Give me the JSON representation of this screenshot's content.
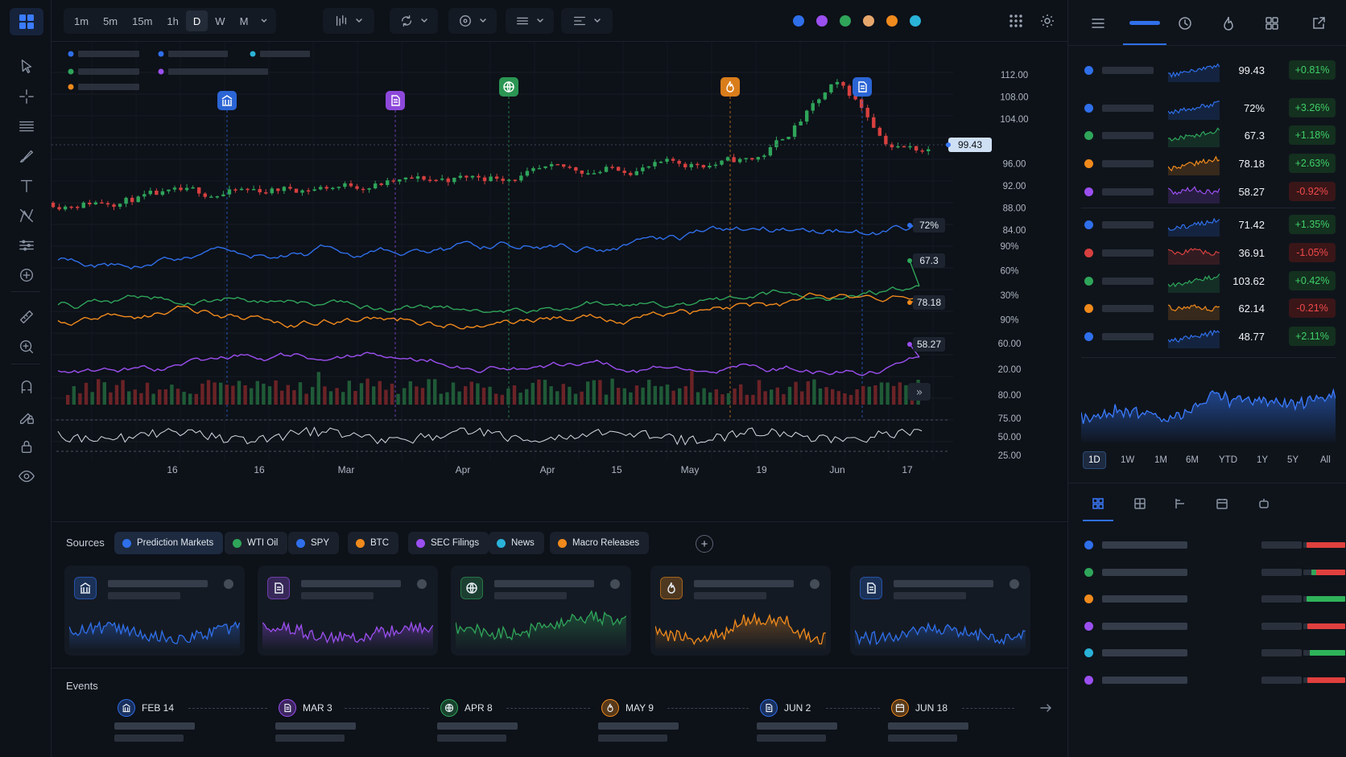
{
  "toolbar": {
    "timeframes": [
      "1m",
      "5m",
      "15m",
      "1h",
      "D",
      "W",
      "M"
    ],
    "active_timeframe": "D",
    "series_colors": [
      "#2f6fea",
      "#9b4ff0",
      "#2fa55a",
      "#e7a76c",
      "#f08a1c",
      "#2ab2d8"
    ]
  },
  "chart": {
    "price_label": "99.43",
    "price_axis": [
      "112.00",
      "108.00",
      "104.00",
      "100.00",
      "96.00",
      "92.00",
      "88.00",
      "84.00"
    ],
    "pct_axis": [
      "90%",
      "60%",
      "30%",
      "90%"
    ],
    "lower_axis": [
      "60.00",
      "20.00",
      "80.00"
    ],
    "osc_axis": [
      "75.00",
      "50.00",
      "25.00"
    ],
    "x_labels": [
      "16",
      "16",
      "Mar",
      "Apr",
      "Apr",
      "15",
      "May",
      "19",
      "Jun",
      "17"
    ],
    "line_labels": [
      {
        "text": "72%",
        "color": "#2f6fea"
      },
      {
        "text": "67.3",
        "color": "#2fa55a"
      },
      {
        "text": "78.18",
        "color": "#f08a1c"
      },
      {
        "text": "58.27",
        "color": "#9b4ff0"
      }
    ],
    "markers": [
      {
        "icon": "bank-icon",
        "color": "#2f6fea"
      },
      {
        "icon": "document-icon",
        "color": "#9b4ff0"
      },
      {
        "icon": "globe-icon",
        "color": "#2fa55a"
      },
      {
        "icon": "fire-icon",
        "color": "#f08a1c"
      },
      {
        "icon": "document-icon",
        "color": "#2f6fea"
      }
    ],
    "legend_colors": [
      "#2f6fea",
      "#2f6fea",
      "#2ab2d8",
      "#2fa55a",
      "#9b4ff0",
      "#f08a1c"
    ],
    "scroll_label": "»"
  },
  "sources": {
    "label": "Sources",
    "chips": [
      {
        "label": "Prediction Markets",
        "color": "#2f6fea"
      },
      {
        "label": "WTI Oil",
        "color": "#2fa55a"
      },
      {
        "label": "SPY",
        "color": "#2f6fea"
      },
      {
        "label": "BTC",
        "color": "#f08a1c"
      },
      {
        "label": "SEC Filings",
        "color": "#9b4ff0"
      },
      {
        "label": "News",
        "color": "#2ab2d8"
      },
      {
        "label": "Macro Releases",
        "color": "#f08a1c"
      }
    ],
    "add_label": "+",
    "cards": [
      {
        "icon": "bank-icon",
        "color": "#2f6fea"
      },
      {
        "icon": "document-icon",
        "color": "#9b4ff0"
      },
      {
        "icon": "globe-icon",
        "color": "#2fa55a"
      },
      {
        "icon": "fire-icon",
        "color": "#f08a1c"
      },
      {
        "icon": "document-icon",
        "color": "#2f6fea"
      }
    ]
  },
  "events": {
    "label": "Events",
    "items": [
      {
        "date": "FEB 14",
        "icon": "bank-icon",
        "color": "#2f6fea"
      },
      {
        "date": "MAR 3",
        "icon": "document-icon",
        "color": "#9b4ff0"
      },
      {
        "date": "APR 8",
        "icon": "globe-icon",
        "color": "#2fa55a"
      },
      {
        "date": "MAY 9",
        "icon": "fire-icon",
        "color": "#f08a1c"
      },
      {
        "date": "JUN 2",
        "icon": "document-icon",
        "color": "#2f6fea"
      },
      {
        "date": "JUN 18",
        "icon": "calendar-icon",
        "color": "#f08a1c"
      }
    ]
  },
  "watchlist": {
    "rows": [
      {
        "value": "99.43",
        "change": "+0.81%",
        "dir": "up",
        "color": "#2f6fea"
      },
      {
        "value": "72%",
        "change": "+3.26%",
        "dir": "up",
        "color": "#2f6fea"
      },
      {
        "value": "67.3",
        "change": "+1.18%",
        "dir": "up",
        "color": "#2fa55a"
      },
      {
        "value": "78.18",
        "change": "+2.63%",
        "dir": "up",
        "color": "#f08a1c"
      },
      {
        "value": "58.27",
        "change": "-0.92%",
        "dir": "down",
        "color": "#9b4ff0"
      },
      {
        "value": "71.42",
        "change": "+1.35%",
        "dir": "up",
        "color": "#2f6fea"
      },
      {
        "value": "36.91",
        "change": "-1.05%",
        "dir": "down",
        "color": "#d6403f"
      },
      {
        "value": "103.62",
        "change": "+0.42%",
        "dir": "up",
        "color": "#2fa55a"
      },
      {
        "value": "62.14",
        "change": "-0.21%",
        "dir": "down",
        "color": "#f08a1c"
      },
      {
        "value": "48.77",
        "change": "+2.11%",
        "dir": "up",
        "color": "#2f6fea"
      }
    ]
  },
  "ranges": [
    "1D",
    "1W",
    "1M",
    "6M",
    "YTD",
    "1Y",
    "5Y",
    "All"
  ],
  "active_range": "1D",
  "breakdown": [
    {
      "color": "#2f6fea",
      "fill": 0.92,
      "fill_color": "#e0403e"
    },
    {
      "color": "#2fa55a",
      "fill": 0.8,
      "fill_color": "#e0403e",
      "accent": "#2fa55a"
    },
    {
      "color": "#f08a1c",
      "fill": 0.92,
      "fill_color": "#2fb35a"
    },
    {
      "color": "#9b4ff0",
      "fill": 0.9,
      "fill_color": "#e0403e"
    },
    {
      "color": "#2ab2d8",
      "fill": 0.85,
      "fill_color": "#2fb35a"
    },
    {
      "color": "#9b4ff0",
      "fill": 0.9,
      "fill_color": "#e0403e"
    }
  ]
}
